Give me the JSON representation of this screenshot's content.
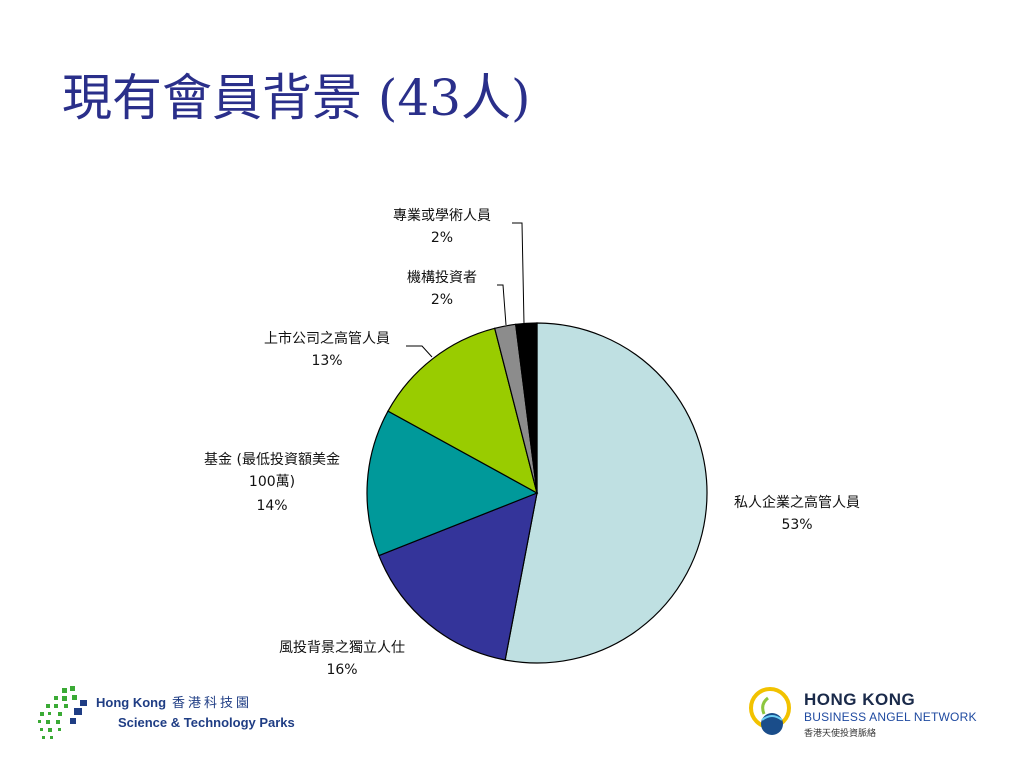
{
  "title": "現有會員背景 (43人)",
  "chart_data": {
    "type": "pie",
    "slices": [
      {
        "label": "私人企業之高管人員",
        "value": 53,
        "pct_label": "53%",
        "color": "#bfe0e2"
      },
      {
        "label": "風投背景之獨立人仕",
        "value": 16,
        "pct_label": "16%",
        "color": "#34349a"
      },
      {
        "label": "基金 (最低投資額美金 100萬)",
        "label_lines": [
          "基金 (最低投資額美金",
          "100萬)"
        ],
        "value": 14,
        "pct_label": "14%",
        "color": "#00999a"
      },
      {
        "label": "上市公司之高管人員",
        "value": 13,
        "pct_label": "13%",
        "color": "#99cc00"
      },
      {
        "label": "機構投資者",
        "value": 2,
        "pct_label": "2%",
        "color": "#8c8c8c"
      },
      {
        "label": "專業或學術人員",
        "value": 2,
        "pct_label": "2%",
        "color": "#000000"
      }
    ]
  },
  "logos": {
    "left": {
      "line1": "Hong Kong",
      "line1_zh": "香港科技園",
      "line2": "Science & Technology Parks"
    },
    "right": {
      "line1": "HONG KONG",
      "line2": "BUSINESS ANGEL NETWORK",
      "line3": "香港天使投資脈絡"
    }
  }
}
